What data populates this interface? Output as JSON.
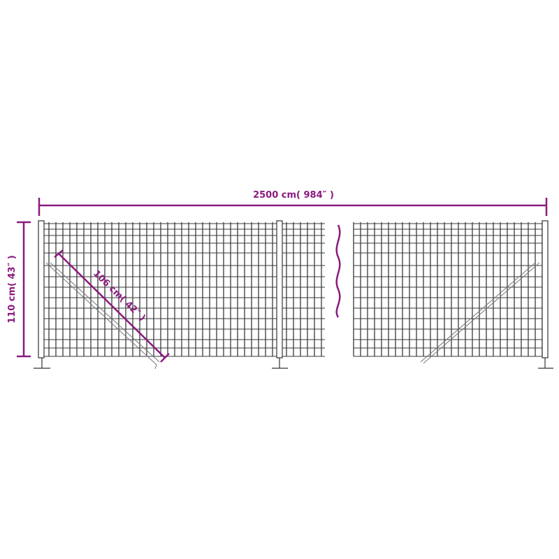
{
  "colors": {
    "dimension": "#8b1a7f",
    "mesh": "#3a3a3a",
    "brace": "#777777"
  },
  "dimensions": {
    "length": "2500 cm( 984″ )",
    "height": "110 cm( 43″ )",
    "brace": "106 cm( 42″ )"
  }
}
